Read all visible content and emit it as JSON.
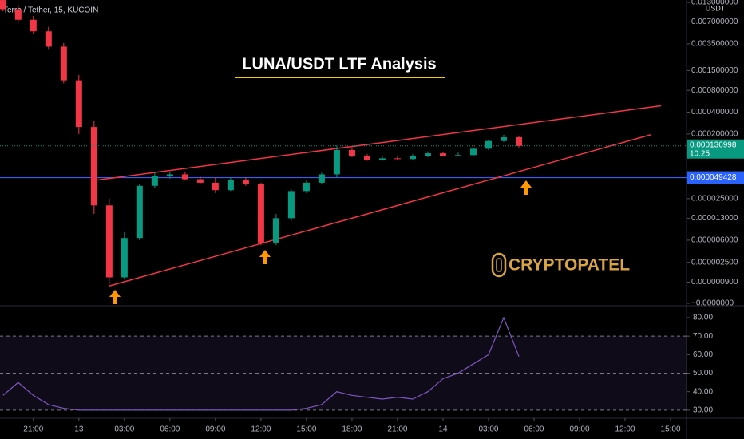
{
  "chart_data": {
    "type": "candlestick",
    "symbol": "Terra / Tether, 15, KUCOIN",
    "title": "LUNA/USDT LTF Analysis",
    "logo": "CRYPTOPATEL",
    "currency": "USDT",
    "log_scale": true,
    "up_color": "#089981",
    "down_color": "#f23645",
    "xlim": [
      -2.2,
      43.05
    ],
    "xticks": [
      {
        "value": 0,
        "label": "21:00"
      },
      {
        "value": 3,
        "label": "13"
      },
      {
        "value": 6,
        "label": "03:00"
      },
      {
        "value": 9,
        "label": "06:00"
      },
      {
        "value": 12,
        "label": "09:00"
      },
      {
        "value": 15,
        "label": "12:00"
      },
      {
        "value": 18,
        "label": "15:00"
      },
      {
        "value": 21,
        "label": "18:00"
      },
      {
        "value": 24,
        "label": "21:00"
      },
      {
        "value": 27,
        "label": "14"
      },
      {
        "value": 30,
        "label": "03:00"
      },
      {
        "value": 33,
        "label": "06:00"
      },
      {
        "value": 36,
        "label": "09:00"
      },
      {
        "value": 39,
        "label": "12:00"
      },
      {
        "value": 42,
        "label": "15:00"
      }
    ],
    "ylim": [
      0,
      0.013
    ],
    "yticks": [
      {
        "value": 0.013,
        "label": "0.013000000"
      },
      {
        "value": 0.007,
        "label": "0.007000000"
      },
      {
        "value": 0.0035,
        "label": "0.003500000"
      },
      {
        "value": 0.0015,
        "label": "0.001500000"
      },
      {
        "value": 0.0008,
        "label": "0.000800000"
      },
      {
        "value": 0.0004,
        "label": "0.000400000"
      },
      {
        "value": 0.0002,
        "label": "0.000200000"
      },
      {
        "value": 2.5e-05,
        "label": "0.000025000"
      },
      {
        "value": 1.3e-05,
        "label": "0.000013000"
      },
      {
        "value": 6e-06,
        "label": "0.000006000"
      },
      {
        "value": 2.5e-06,
        "label": "0.000002500"
      },
      {
        "value": 9e-07,
        "label": "0.000000900"
      },
      {
        "value": 0,
        "label": "−0.0000000"
      }
    ],
    "x": [
      -2,
      -1,
      0,
      1,
      2,
      3,
      4,
      5,
      6,
      7,
      8,
      9,
      10,
      11,
      12,
      13,
      14,
      15,
      16,
      17,
      18,
      19,
      20,
      21,
      22,
      23,
      24,
      25,
      26,
      27,
      28,
      29,
      30,
      31,
      32
    ],
    "open": [
      0.014,
      0.0105,
      0.0075,
      0.0052,
      0.0032,
      0.0011,
      0.00025,
      2e-05,
      1.2e-06,
      6.5e-06,
      3.8e-05,
      5.2e-05,
      5.5e-05,
      4.7e-05,
      4.2e-05,
      3.3e-05,
      4.6e-05,
      4e-05,
      5.5e-06,
      1.3e-05,
      3.2e-05,
      4.2e-05,
      5.5e-05,
      0.00012,
      0.0001,
      8.8e-05,
      9.2e-05,
      9e-05,
      0.0001,
      0.000108,
      0.0001,
      0.000102,
      0.000125,
      0.00016,
      0.00018
    ],
    "high": [
      0.015,
      0.012,
      0.0085,
      0.006,
      0.0036,
      0.0013,
      0.0003,
      2.5e-05,
      8e-06,
      4e-05,
      5.8e-05,
      6e-05,
      6e-05,
      5.2e-05,
      5e-05,
      5e-05,
      5e-05,
      4.2e-05,
      1.5e-05,
      3.4e-05,
      4.5e-05,
      5.8e-05,
      0.00014,
      0.00013,
      0.000105,
      0.0001,
      9.8e-05,
      0.000105,
      0.000115,
      0.000112,
      0.00011,
      0.00013,
      0.000165,
      0.000195,
      0.00019
    ],
    "low": [
      0.0098,
      0.0068,
      0.0048,
      0.0029,
      0.001,
      0.0002,
      1.5e-05,
      8e-07,
      1.1e-06,
      6e-06,
      3.5e-05,
      4.8e-05,
      4.5e-05,
      4e-05,
      3e-05,
      3.2e-05,
      3.8e-05,
      5e-06,
      5e-06,
      1.2e-05,
      3e-05,
      4e-05,
      5e-05,
      9.5e-05,
      8.5e-05,
      8.5e-05,
      8.6e-05,
      8.8e-05,
      9.5e-05,
      9.8e-05,
      9.7e-05,
      0.0001,
      0.00012,
      0.000155,
      0.00013
    ],
    "close": [
      0.0105,
      0.0075,
      0.0052,
      0.0032,
      0.0011,
      0.00025,
      2e-05,
      1.2e-06,
      6.5e-06,
      3.8e-05,
      5.2e-05,
      5.5e-05,
      4.7e-05,
      4.2e-05,
      3.3e-05,
      4.6e-05,
      4e-05,
      5.5e-06,
      1.3e-05,
      3.2e-05,
      4.2e-05,
      5.5e-05,
      0.00012,
      0.0001,
      8.8e-05,
      9.2e-05,
      9e-05,
      0.0001,
      0.000108,
      0.0001,
      0.000102,
      0.000125,
      0.00016,
      0.00018,
      0.000137
    ],
    "last_price": {
      "value": 0.000136998,
      "countdown": "10:25",
      "color": "#089981"
    },
    "hline": {
      "value": 4.9428e-05,
      "color": "#2962ff"
    },
    "trendlines": [
      {
        "x": [
          3.95,
          41.37
        ],
        "y": [
          4.5e-05,
          0.00049
        ],
        "color": "#f23645"
      },
      {
        "x": [
          5.0,
          40.68
        ],
        "y": [
          6.9e-07,
          0.000195
        ],
        "color": "#f23645"
      }
    ],
    "rsi": {
      "color": "#7e57c2",
      "ylim": [
        26.5,
        85.6
      ],
      "yticks": [
        {
          "value": 80,
          "label": "80.00"
        },
        {
          "value": 70,
          "label": "70.00"
        },
        {
          "value": 60,
          "label": "60.00"
        },
        {
          "value": 50,
          "label": "50.00"
        },
        {
          "value": 40,
          "label": "40.00"
        },
        {
          "value": 30,
          "label": "30.00"
        }
      ],
      "levels": [
        30,
        50,
        70
      ],
      "values": [
        38,
        45,
        38,
        33,
        31,
        30,
        30,
        30,
        30,
        30,
        30,
        30,
        30,
        30,
        30,
        30,
        30,
        30,
        30,
        30,
        31,
        33,
        40,
        38,
        37,
        36,
        37,
        36,
        40,
        47,
        50,
        55,
        60,
        80,
        59
      ]
    }
  }
}
